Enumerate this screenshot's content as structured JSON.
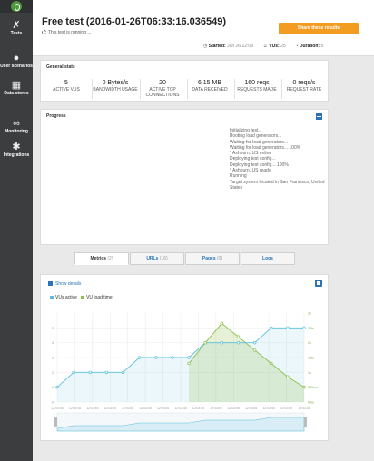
{
  "sidebar": {
    "items": [
      {
        "label": "Tests",
        "icon": "tests-icon"
      },
      {
        "label": "User scenarios",
        "icon": "users-icon"
      },
      {
        "label": "Data stores",
        "icon": "data-stores-icon"
      },
      {
        "label": "Monitoring",
        "icon": "binoculars-icon"
      },
      {
        "label": "Integrations",
        "icon": "integrations-icon"
      }
    ]
  },
  "header": {
    "title": "Free test (2016-01-26T06:33:16.036549)",
    "status": "This test is running ...",
    "share_label": "Share these results",
    "started_label": "Started:",
    "started_value": "Jan 26 12:03",
    "vus_label": "VUs:",
    "vus_value": "25",
    "duration_label": "Duration:",
    "duration_value": "5"
  },
  "general_stats": {
    "title": "General stats",
    "stats": [
      {
        "value": "5",
        "label": "ACTIVE VUS"
      },
      {
        "value": "0 Bytes/s",
        "label": "BANDWIDTH USAGE"
      },
      {
        "value": "20",
        "label": "ACTIVE TCP CONNECTIONS"
      },
      {
        "value": "6.15 MB",
        "label": "DATA RECEIVED"
      },
      {
        "value": "160 reqs",
        "label": "REQUESTS MADE"
      },
      {
        "value": "0 reqs/s",
        "label": "REQUEST RATE"
      }
    ]
  },
  "progress": {
    "title": "Progress",
    "log": [
      "Initializing test...",
      "Booting load generators...",
      "Waiting for load generators...",
      "Waiting for load generators... 100%",
      "* Ashburn, US online",
      "Deploying test config...",
      "Deploying test config... 100%",
      "* Ashburn, US ready",
      "Running",
      "Target system located in San Francisco, United States"
    ]
  },
  "tabs": [
    {
      "label": "Metrics",
      "count": "(2)"
    },
    {
      "label": "URLs",
      "count": "(16)"
    },
    {
      "label": "Pages",
      "count": "(0)"
    },
    {
      "label": "Logs",
      "count": ""
    }
  ],
  "chart_panel": {
    "details_label": "Show details"
  },
  "colors": {
    "accent": "#f39c22",
    "link": "#2b73b8",
    "vus_series": "#5bbfdc",
    "load_time_series": "#8cc04b",
    "sidebar": "#3b3d3f"
  },
  "chart_data": {
    "type": "line",
    "x": [
      1,
      2,
      3,
      4,
      5,
      6,
      7,
      8,
      9,
      10,
      11,
      12,
      13,
      14,
      15,
      16
    ],
    "x_tick_labels": [
      "12:03:45",
      "12:03:45",
      "12:03:45",
      "12:03:45",
      "12:03:45",
      "12:03:45",
      "12:03:45",
      "12:03:45",
      "12:03:45",
      "12:03:45",
      "12:03:45",
      "12:03:45",
      "12:03:45",
      "12:03:45",
      "12:03:45"
    ],
    "y_left_ticks": [
      "0",
      "1",
      "2",
      "3",
      "4",
      "5"
    ],
    "y_right_ticks": [
      "0ms",
      "500ms",
      "1s",
      "1.5s",
      "2s",
      "2.5s",
      "3s"
    ],
    "ylim_left": [
      0,
      6
    ],
    "ylim_right": [
      0,
      3
    ],
    "series": [
      {
        "name": "VUs active",
        "axis": "left",
        "values": [
          1,
          2,
          2,
          2,
          2,
          3,
          3,
          3,
          3,
          4,
          4,
          4,
          4,
          5,
          5,
          5
        ]
      },
      {
        "name": "VU load time",
        "axis": "right",
        "values": [
          null,
          null,
          null,
          null,
          null,
          null,
          null,
          null,
          1.3,
          2.0,
          2.65,
          2.2,
          1.75,
          1.3,
          0.85,
          0.5
        ]
      }
    ],
    "grid": true,
    "legend": "top-left"
  }
}
